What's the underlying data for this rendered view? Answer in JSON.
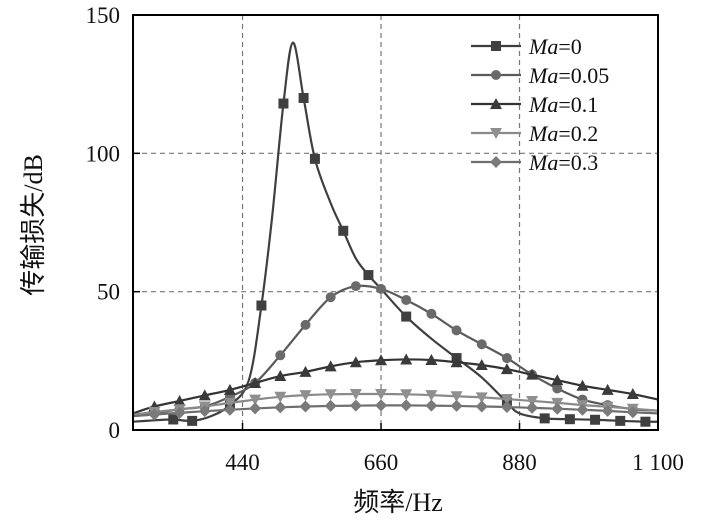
{
  "chart_data": {
    "type": "line",
    "xlabel": "频率/Hz",
    "ylabel": "传输损失/dB",
    "xlim": [
      266,
      1100
    ],
    "ylim": [
      0,
      150
    ],
    "x_ticks": [
      440,
      660,
      880,
      1100
    ],
    "x_tick_labels": [
      "440",
      "660",
      "880",
      "1 100"
    ],
    "y_ticks": [
      0,
      50,
      100,
      150
    ],
    "y_tick_labels": [
      "0",
      "50",
      "100",
      "150"
    ],
    "grid": "dashed",
    "legend_position": "top-right",
    "colors": {
      "line": "#3a3a3a",
      "grid": "#777777",
      "axis": "#000000"
    },
    "series": [
      {
        "name": "Ma=0",
        "name_var": "Ma",
        "name_val": "=0",
        "marker": "square",
        "color": "#3f3f3f",
        "marker_color": "#404040",
        "x": [
          266,
          300,
          330,
          360,
          390,
          420,
          450,
          470,
          487,
          505,
          520,
          537,
          555,
          580,
          600,
          620,
          640,
          660,
          700,
          740,
          780,
          820,
          860,
          880,
          920,
          960,
          1000,
          1040,
          1080,
          1100
        ],
        "y": [
          3,
          3.5,
          3.8,
          3.3,
          5,
          9,
          18,
          45,
          77,
          118,
          140,
          120,
          98,
          82,
          72,
          62,
          56,
          51,
          41,
          33,
          26,
          19,
          10,
          6,
          4.2,
          3.9,
          3.7,
          3.3,
          3,
          3
        ]
      },
      {
        "name": "Ma=0.05",
        "name_var": "Ma",
        "name_val": "=0.05",
        "marker": "circle",
        "color": "#5a5a5a",
        "marker_color": "#6a6a6a",
        "x": [
          266,
          300,
          340,
          380,
          420,
          460,
          500,
          540,
          580,
          620,
          660,
          700,
          740,
          780,
          820,
          860,
          900,
          940,
          980,
          1020,
          1060,
          1100
        ],
        "y": [
          5,
          6,
          7.5,
          8.5,
          12,
          17,
          27,
          38,
          48,
          52,
          51,
          47,
          42,
          36,
          31,
          26,
          20,
          15,
          11,
          9,
          7.5,
          7
        ]
      },
      {
        "name": "Ma=0.1",
        "name_var": "Ma",
        "name_val": "=0.1",
        "marker": "triangle-up",
        "color": "#333333",
        "marker_color": "#3a3a3a",
        "x": [
          266,
          300,
          340,
          380,
          420,
          460,
          500,
          540,
          580,
          620,
          660,
          700,
          740,
          780,
          820,
          860,
          900,
          940,
          980,
          1020,
          1060,
          1100
        ],
        "y": [
          6,
          8.5,
          10.5,
          12.5,
          14.5,
          17,
          19.5,
          21,
          23,
          24.5,
          25.2,
          25.5,
          25.3,
          24.5,
          23.5,
          22,
          20,
          18,
          16,
          14.5,
          13,
          11
        ]
      },
      {
        "name": "Ma=0.2",
        "name_var": "Ma",
        "name_val": "=0.2",
        "marker": "triangle-down",
        "color": "#8a8a8a",
        "marker_color": "#8f8f8f",
        "x": [
          266,
          300,
          340,
          380,
          420,
          460,
          500,
          540,
          580,
          620,
          660,
          700,
          740,
          780,
          820,
          860,
          900,
          940,
          980,
          1020,
          1060,
          1100
        ],
        "y": [
          5.5,
          6.5,
          7.5,
          8.5,
          9.8,
          11,
          12,
          12.6,
          12.9,
          13,
          13,
          12.9,
          12.6,
          12.2,
          11.8,
          11.2,
          10.5,
          9.8,
          9,
          8.4,
          7.7,
          7
        ]
      },
      {
        "name": "Ma=0.3",
        "name_var": "Ma",
        "name_val": "=0.3",
        "marker": "diamond",
        "color": "#6e6e6e",
        "marker_color": "#7a7a7a",
        "x": [
          266,
          300,
          340,
          380,
          420,
          460,
          500,
          540,
          580,
          620,
          660,
          700,
          740,
          780,
          820,
          860,
          900,
          940,
          980,
          1020,
          1060,
          1100
        ],
        "y": [
          5,
          5.6,
          6.2,
          6.8,
          7.3,
          7.8,
          8.2,
          8.5,
          8.7,
          8.8,
          8.9,
          8.9,
          8.8,
          8.7,
          8.5,
          8.3,
          8,
          7.7,
          7.3,
          6.9,
          6.4,
          6
        ]
      }
    ]
  }
}
